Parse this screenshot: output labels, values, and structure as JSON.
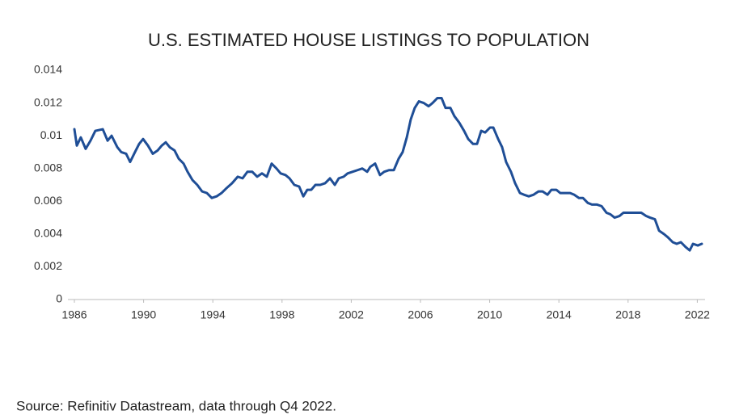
{
  "chart_data": {
    "type": "line",
    "title": "U.S. ESTIMATED HOUSE LISTINGS TO POPULATION",
    "x": [
      1986.0,
      1986.14,
      1986.37,
      1986.65,
      1986.93,
      1987.21,
      1987.64,
      1987.92,
      1988.15,
      1988.48,
      1988.71,
      1988.99,
      1989.22,
      1989.5,
      1989.74,
      1989.97,
      1990.25,
      1990.53,
      1990.81,
      1991.05,
      1991.28,
      1991.51,
      1991.79,
      1992.03,
      1992.31,
      1992.54,
      1992.82,
      1993.1,
      1993.38,
      1993.66,
      1993.94,
      1994.22,
      1994.5,
      1994.79,
      1995.11,
      1995.44,
      1995.72,
      1996.0,
      1996.28,
      1996.56,
      1996.84,
      1997.12,
      1997.4,
      1997.68,
      1997.92,
      1998.2,
      1998.43,
      1998.71,
      1998.99,
      1999.23,
      1999.46,
      1999.69,
      1999.93,
      2000.21,
      2000.49,
      2000.77,
      2001.05,
      2001.28,
      2001.56,
      2001.79,
      2002.07,
      2002.36,
      2002.64,
      2002.92,
      2003.1,
      2003.38,
      2003.66,
      2003.9,
      2004.18,
      2004.46,
      2004.74,
      2004.97,
      2005.21,
      2005.44,
      2005.67,
      2005.91,
      2006.19,
      2006.47,
      2006.7,
      2006.98,
      2007.22,
      2007.45,
      2007.73,
      2007.96,
      2008.24,
      2008.52,
      2008.76,
      2009.04,
      2009.27,
      2009.51,
      2009.74,
      2010.02,
      2010.21,
      2010.49,
      2010.72,
      2010.95,
      2011.23,
      2011.47,
      2011.75,
      2011.98,
      2012.26,
      2012.54,
      2012.82,
      2013.06,
      2013.34,
      2013.57,
      2013.85,
      2014.08,
      2014.36,
      2014.65,
      2014.88,
      2015.16,
      2015.39,
      2015.67,
      2015.91,
      2016.19,
      2016.47,
      2016.75,
      2016.98,
      2017.22,
      2017.5,
      2017.73,
      2018.01,
      2018.24,
      2018.52,
      2018.76,
      2019.04,
      2019.27,
      2019.55,
      2019.79,
      2020.07,
      2020.3,
      2020.58,
      2020.81,
      2021.05,
      2021.33,
      2021.56,
      2021.75,
      2022.03,
      2022.26
    ],
    "values": [
      0.0104,
      0.0094,
      0.0099,
      0.0092,
      0.0097,
      0.0103,
      0.0104,
      0.0097,
      0.01,
      0.0093,
      0.009,
      0.0089,
      0.0084,
      0.009,
      0.0095,
      0.0098,
      0.0094,
      0.0089,
      0.0091,
      0.0094,
      0.0096,
      0.0093,
      0.0091,
      0.0086,
      0.0083,
      0.0078,
      0.0073,
      0.007,
      0.0066,
      0.0065,
      0.0062,
      0.0063,
      0.0065,
      0.0068,
      0.0071,
      0.0075,
      0.0074,
      0.0078,
      0.0078,
      0.0075,
      0.0077,
      0.0075,
      0.0083,
      0.008,
      0.0077,
      0.0076,
      0.0074,
      0.007,
      0.0069,
      0.0063,
      0.0067,
      0.0067,
      0.007,
      0.007,
      0.0071,
      0.0074,
      0.007,
      0.0074,
      0.0075,
      0.0077,
      0.0078,
      0.0079,
      0.008,
      0.0078,
      0.0081,
      0.0083,
      0.0076,
      0.0078,
      0.0079,
      0.0079,
      0.0086,
      0.009,
      0.0099,
      0.011,
      0.0117,
      0.0121,
      0.012,
      0.0118,
      0.012,
      0.0123,
      0.0123,
      0.0117,
      0.0117,
      0.0112,
      0.0108,
      0.0103,
      0.0098,
      0.0095,
      0.0095,
      0.0103,
      0.0102,
      0.0105,
      0.0105,
      0.0098,
      0.0093,
      0.0084,
      0.0078,
      0.0071,
      0.0065,
      0.0064,
      0.0063,
      0.0064,
      0.0066,
      0.0066,
      0.0064,
      0.0067,
      0.0067,
      0.0065,
      0.0065,
      0.0065,
      0.0064,
      0.0062,
      0.0062,
      0.0059,
      0.0058,
      0.0058,
      0.0057,
      0.0053,
      0.0052,
      0.005,
      0.0051,
      0.0053,
      0.0053,
      0.0053,
      0.0053,
      0.0053,
      0.0051,
      0.005,
      0.0049,
      0.0042,
      0.004,
      0.0038,
      0.0035,
      0.0034,
      0.0035,
      0.0032,
      0.003,
      0.0034,
      0.0033,
      0.0034
    ],
    "color": "#1f4e96",
    "xlim": [
      1985.85,
      2022.3
    ],
    "xticks": [
      1986,
      1990,
      1994,
      1998,
      2002,
      2006,
      2010,
      2014,
      2018,
      2022
    ],
    "ylim": [
      0,
      0.014
    ],
    "yticks": [
      0,
      0.002,
      0.004,
      0.006,
      0.008,
      0.01,
      0.012,
      0.014
    ],
    "grid": false
  },
  "source": "Source: Refinitiv Datastream, data through Q4 2022."
}
